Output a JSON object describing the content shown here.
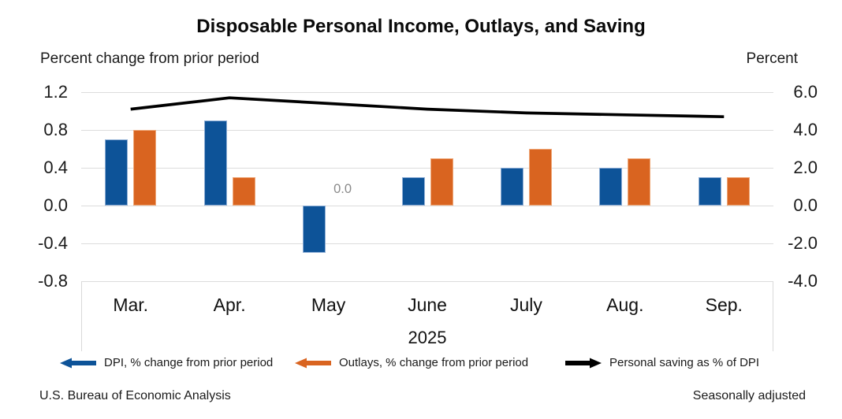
{
  "footer": {
    "source": "U.S. Bureau of Economic Analysis",
    "note": "Seasonally adjusted"
  },
  "legend": {
    "items": [
      {
        "id": "dpi",
        "label": "DPI, % change from prior period",
        "color": "#0d5398",
        "arrow_direction": "left"
      },
      {
        "id": "outlays",
        "label": "Outlays, % change from prior period",
        "color": "#d96420",
        "arrow_direction": "left"
      },
      {
        "id": "saving",
        "label": "Personal saving as % of DPI",
        "color": "#000000",
        "arrow_direction": "right"
      }
    ]
  },
  "chart_data": {
    "type": "combo",
    "title": "Disposable Personal Income, Outlays, and Saving",
    "categories": [
      "Mar.",
      "Apr.",
      "May",
      "June",
      "July",
      "Aug.",
      "Sep."
    ],
    "year_label": "2025",
    "left_axis": {
      "caption": "Percent change from prior period",
      "tick_labels": [
        "1.2",
        "0.8",
        "0.4",
        "0.0",
        "-0.4",
        "-0.8"
      ],
      "min": -0.8,
      "max": 1.2
    },
    "right_axis": {
      "caption": "Percent",
      "tick_labels": [
        "6.0",
        "4.0",
        "2.0",
        "0.0",
        "-2.0",
        "-4.0"
      ],
      "min": -4.0,
      "max": 6.0
    },
    "grid": "horizontal",
    "series": [
      {
        "name": "DPI, % change from prior period",
        "type": "bar",
        "axis": "left",
        "color": "#0d5398",
        "edge_color": "#8fafd6",
        "values": [
          0.7,
          0.9,
          -0.5,
          0.3,
          0.4,
          0.4,
          0.3
        ]
      },
      {
        "name": "Outlays, % change from prior period",
        "type": "bar",
        "axis": "left",
        "color": "#d96420",
        "edge_color": "#efa97a",
        "values": [
          0.8,
          0.3,
          0.0,
          0.5,
          0.6,
          0.5,
          0.3
        ]
      },
      {
        "name": "Personal saving as % of DPI",
        "type": "line",
        "axis": "right",
        "color": "#000000",
        "values": [
          5.1,
          5.7,
          5.4,
          5.1,
          4.9,
          4.8,
          4.7
        ]
      }
    ],
    "annotations": [
      {
        "text": "0.0",
        "category_index": 2,
        "series_index": 1
      }
    ]
  }
}
